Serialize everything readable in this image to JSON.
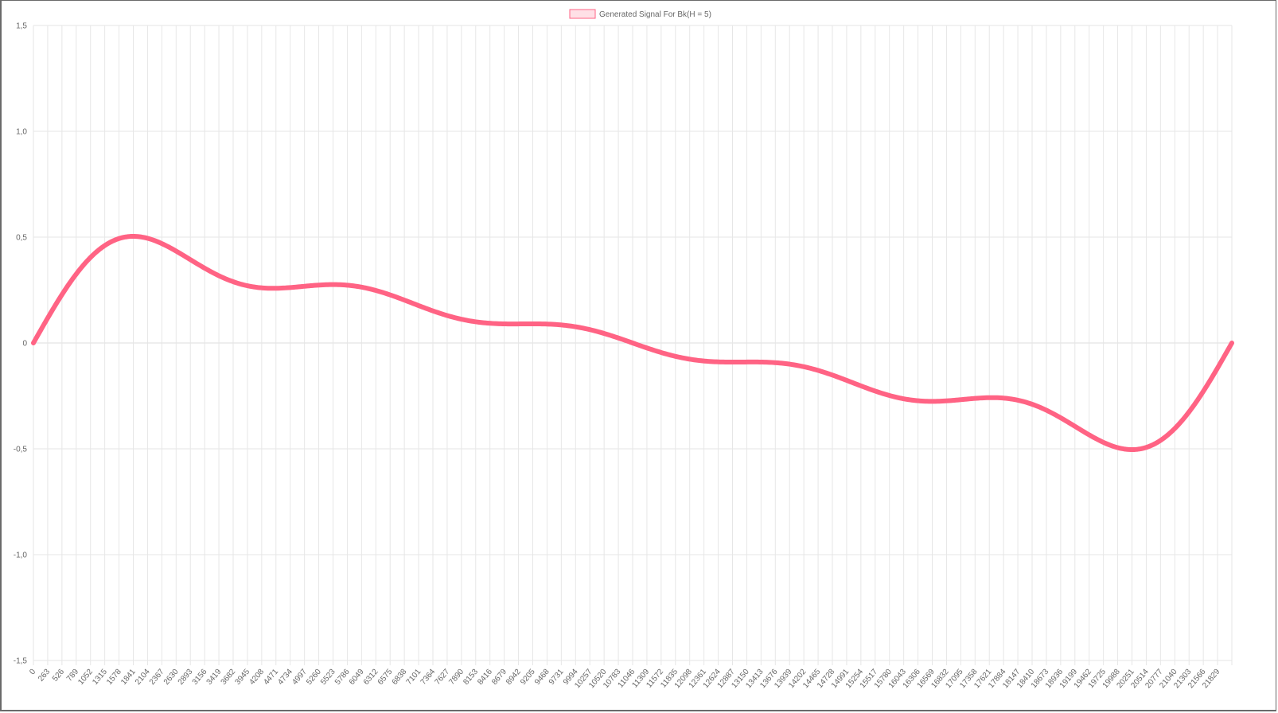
{
  "chart_data": {
    "type": "line",
    "title": "",
    "xlabel": "",
    "ylabel": "",
    "ylim": [
      -1.5,
      1.5
    ],
    "y_ticks": [
      1.5,
      1.0,
      0.5,
      0,
      -0.5,
      -1.0,
      -1.5
    ],
    "y_tick_labels": [
      "1,5",
      "1,0",
      "0,5",
      "0",
      "-0,5",
      "-1,0",
      "-1,5"
    ],
    "grid": true,
    "legend": "top-center",
    "x_tick_labels": [
      "0",
      "263",
      "526",
      "789",
      "1052",
      "1315",
      "1578",
      "1841",
      "2104",
      "2367",
      "2630",
      "2893",
      "3156",
      "3419",
      "3682",
      "3945",
      "4208",
      "4471",
      "4734",
      "4997",
      "5260",
      "5523",
      "5786",
      "6049",
      "6312",
      "6575",
      "6838",
      "7101",
      "7364",
      "7627",
      "7890",
      "8153",
      "8416",
      "8679",
      "8942",
      "9205",
      "9468",
      "9731",
      "9994",
      "10257",
      "10520",
      "10783",
      "11046",
      "11309",
      "11572",
      "11835",
      "12098",
      "12361",
      "12624",
      "12887",
      "13150",
      "13413",
      "13676",
      "13939",
      "14202",
      "14465",
      "14728",
      "14991",
      "15254",
      "15517",
      "15780",
      "16043",
      "16306",
      "16569",
      "16832",
      "17095",
      "17358",
      "17621",
      "17884",
      "18147",
      "18410",
      "18673",
      "18936",
      "19199",
      "19462",
      "19725",
      "19988",
      "20251",
      "20514",
      "20777",
      "21040",
      "21303",
      "21566",
      "21829"
    ],
    "series": [
      {
        "name": "Generated Signal For Bk(H = 5)",
        "color": "#ff6384",
        "fill": "rgba(255,99,132,0.2)",
        "harmonics": 5,
        "x_max": 22092
      }
    ]
  }
}
